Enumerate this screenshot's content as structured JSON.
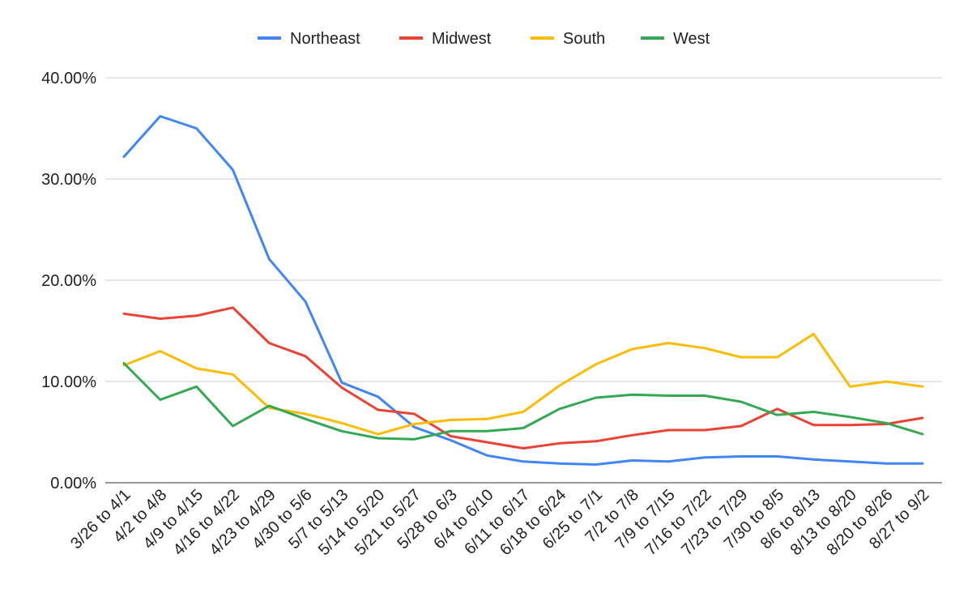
{
  "chart_data": {
    "type": "line",
    "title": "",
    "xlabel": "",
    "ylabel": "",
    "ylim": [
      0,
      40
    ],
    "y_tick_format": "percent_2dp",
    "y_ticks": [
      "0.00%",
      "10.00%",
      "20.00%",
      "30.00%",
      "40.00%"
    ],
    "grid": "horizontal",
    "legend_position": "top-center",
    "categories": [
      "3/26 to 4/1",
      "4/2 to 4/8",
      "4/9 to 4/15",
      "4/16 to 4/22",
      "4/23 to 4/29",
      "4/30 to 5/6",
      "5/7 to 5/13",
      "5/14 to 5/20",
      "5/21 to 5/27",
      "5/28 to 6/3",
      "6/4 to 6/10",
      "6/11 to 6/17",
      "6/18 to 6/24",
      "6/25 to 7/1",
      "7/2 to 7/8",
      "7/9 to 7/15",
      "7/16 to 7/22",
      "7/23 to 7/29",
      "7/30 to 8/5",
      "8/6 to 8/13",
      "8/13 to 8/20",
      "8/20 to 8/26",
      "8/27 to 9/2"
    ],
    "series": [
      {
        "name": "Northeast",
        "color": "#4285F4",
        "values": [
          32.2,
          36.2,
          35.0,
          30.9,
          22.1,
          17.9,
          9.9,
          8.5,
          5.5,
          4.2,
          2.7,
          2.1,
          1.9,
          1.8,
          2.2,
          2.1,
          2.5,
          2.6,
          2.6,
          2.3,
          2.1,
          1.9,
          1.9
        ]
      },
      {
        "name": "Midwest",
        "color": "#EA4335",
        "values": [
          16.7,
          16.2,
          16.5,
          17.3,
          13.8,
          12.5,
          9.4,
          7.2,
          6.8,
          4.6,
          4.0,
          3.4,
          3.9,
          4.1,
          4.7,
          5.2,
          5.2,
          5.6,
          7.3,
          5.7,
          5.7,
          5.8,
          6.4
        ]
      },
      {
        "name": "South",
        "color": "#FBBC04",
        "values": [
          11.6,
          13.0,
          11.3,
          10.7,
          7.4,
          6.8,
          5.9,
          4.8,
          5.8,
          6.2,
          6.3,
          7.0,
          9.6,
          11.7,
          13.2,
          13.8,
          13.3,
          12.4,
          12.4,
          14.7,
          9.5,
          10.0,
          9.5
        ]
      },
      {
        "name": "West",
        "color": "#34A853",
        "values": [
          11.8,
          8.2,
          9.5,
          5.6,
          7.6,
          6.3,
          5.1,
          4.4,
          4.3,
          5.1,
          5.1,
          5.4,
          7.3,
          8.4,
          8.7,
          8.6,
          8.6,
          8.0,
          6.7,
          7.0,
          6.5,
          5.9,
          4.8
        ]
      }
    ]
  }
}
